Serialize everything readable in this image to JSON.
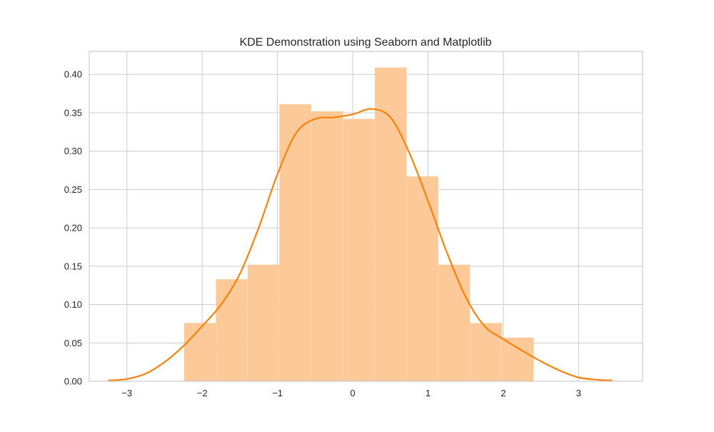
{
  "chart_data": {
    "type": "bar",
    "title": "KDE Demonstration using Seaborn and Matplotlib",
    "xlabel": "",
    "ylabel": "",
    "xlim": [
      -3.5,
      3.85
    ],
    "ylim": [
      0,
      0.43
    ],
    "x_ticks": [
      {
        "value": -3,
        "label": "−3"
      },
      {
        "value": -2,
        "label": "−2"
      },
      {
        "value": -1,
        "label": "−1"
      },
      {
        "value": 0,
        "label": "0"
      },
      {
        "value": 1,
        "label": "1"
      },
      {
        "value": 2,
        "label": "2"
      },
      {
        "value": 3,
        "label": "3"
      }
    ],
    "y_ticks": [
      {
        "value": 0.0,
        "label": "0.00"
      },
      {
        "value": 0.05,
        "label": "0.05"
      },
      {
        "value": 0.1,
        "label": "0.10"
      },
      {
        "value": 0.15,
        "label": "0.15"
      },
      {
        "value": 0.2,
        "label": "0.20"
      },
      {
        "value": 0.25,
        "label": "0.25"
      },
      {
        "value": 0.3,
        "label": "0.30"
      },
      {
        "value": 0.35,
        "label": "0.35"
      },
      {
        "value": 0.4,
        "label": "0.40"
      }
    ],
    "grid": true,
    "histogram": {
      "bin_edges": [
        -2.24,
        -1.818,
        -1.396,
        -0.974,
        -0.552,
        -0.13,
        0.292,
        0.714,
        1.136,
        1.558,
        1.98,
        2.402
      ],
      "values": [
        0.076,
        0.133,
        0.152,
        0.361,
        0.352,
        0.342,
        0.409,
        0.267,
        0.152,
        0.076,
        0.057
      ],
      "color": "#fdc998"
    },
    "kde": {
      "x": [
        -3.25,
        -3.0,
        -2.75,
        -2.5,
        -2.25,
        -2.0,
        -1.75,
        -1.5,
        -1.25,
        -1.0,
        -0.75,
        -0.5,
        -0.25,
        0.0,
        0.25,
        0.5,
        0.75,
        1.0,
        1.25,
        1.5,
        1.75,
        2.0,
        2.25,
        2.5,
        2.75,
        3.0,
        3.25,
        3.45
      ],
      "y": [
        0.001,
        0.003,
        0.01,
        0.025,
        0.046,
        0.072,
        0.1,
        0.14,
        0.2,
        0.27,
        0.324,
        0.342,
        0.344,
        0.348,
        0.355,
        0.344,
        0.298,
        0.235,
        0.168,
        0.11,
        0.072,
        0.055,
        0.04,
        0.026,
        0.014,
        0.005,
        0.002,
        0.001
      ],
      "color": "#f9820c"
    },
    "colors": {
      "grid": "#cccccc",
      "frame": "#cccccc",
      "text": "#262626"
    }
  }
}
